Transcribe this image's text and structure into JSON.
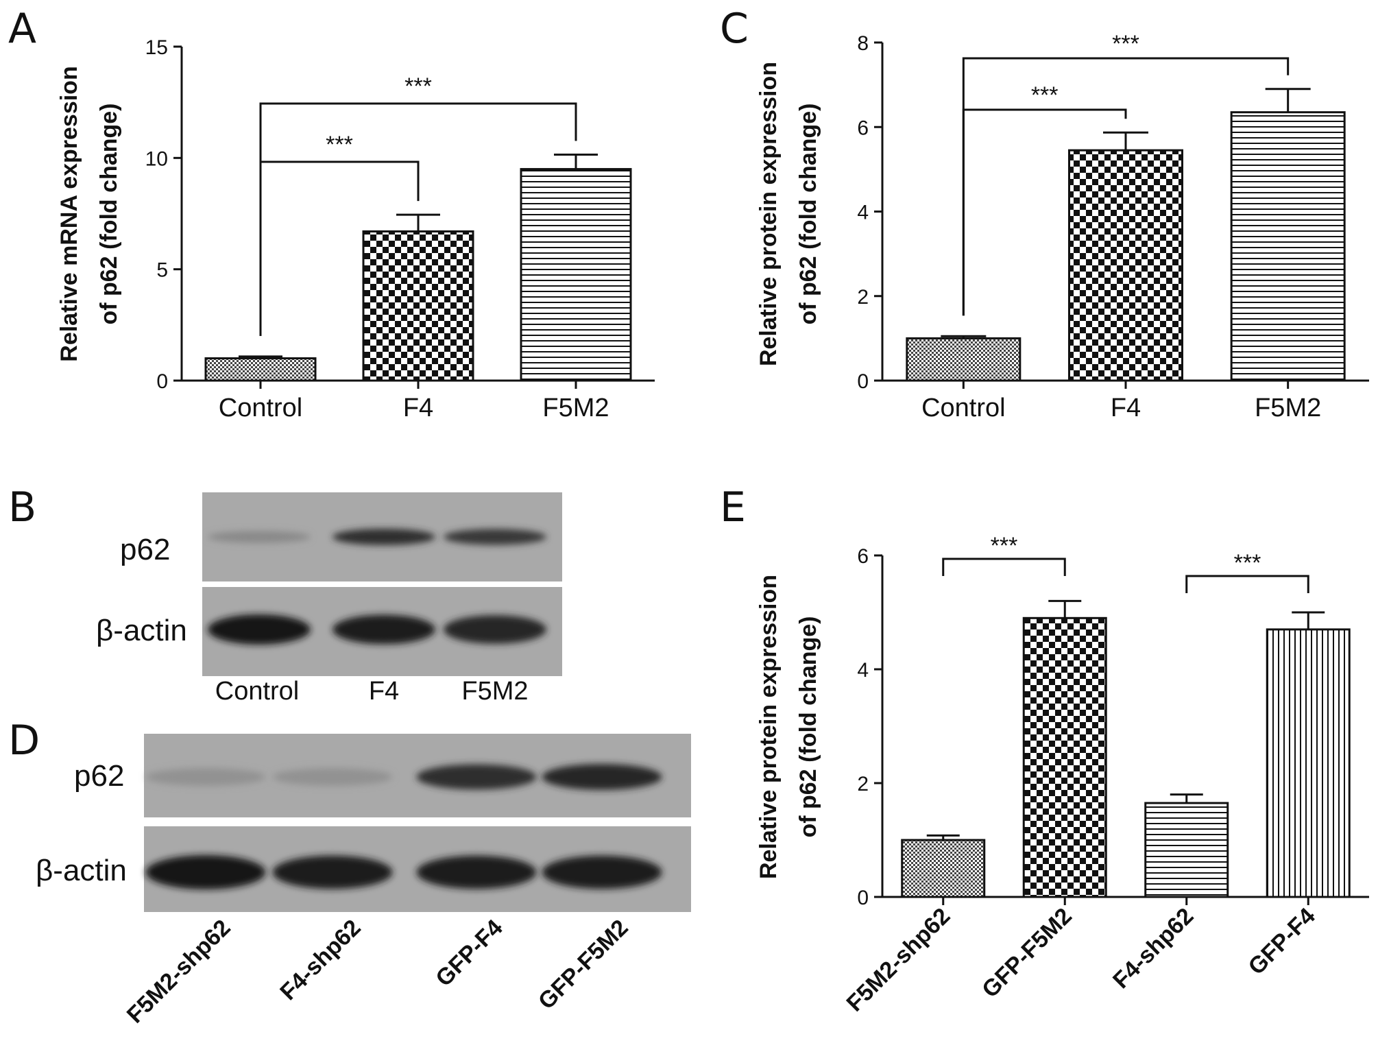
{
  "panel_letters": {
    "a": "A",
    "b": "B",
    "c": "C",
    "d": "D",
    "e": "E"
  },
  "chart_data": [
    {
      "panel": "A",
      "type": "bar",
      "ylabel_line1": "Relative mRNA expression",
      "ylabel_line2": "of p62 (fold change)",
      "ylim": [
        0,
        15
      ],
      "yticks": [
        0,
        5,
        10,
        15
      ],
      "categories": [
        "Control",
        "F4",
        "F5M2"
      ],
      "values": [
        1.0,
        6.7,
        9.5
      ],
      "errors": [
        0.08,
        0.75,
        0.65
      ],
      "patterns": [
        "fine-check",
        "checker",
        "hlines"
      ],
      "significance": [
        {
          "from": 0,
          "to": 1,
          "label": "***"
        },
        {
          "from": 0,
          "to": 2,
          "label": "***"
        }
      ]
    },
    {
      "panel": "C",
      "type": "bar",
      "ylabel_line1": "Relative protein expression",
      "ylabel_line2": "of p62 (fold change)",
      "ylim": [
        0,
        8
      ],
      "yticks": [
        0,
        2,
        4,
        6,
        8
      ],
      "categories": [
        "Control",
        "F4",
        "F5M2"
      ],
      "values": [
        1.0,
        5.45,
        6.35
      ],
      "errors": [
        0.05,
        0.42,
        0.55
      ],
      "patterns": [
        "fine-check",
        "checker",
        "hlines"
      ],
      "significance": [
        {
          "from": 0,
          "to": 1,
          "label": "***"
        },
        {
          "from": 0,
          "to": 2,
          "label": "***"
        }
      ]
    },
    {
      "panel": "E",
      "type": "bar",
      "ylabel_line1": "Relative protein expression",
      "ylabel_line2": "of p62 (fold change)",
      "ylim": [
        0,
        6
      ],
      "yticks": [
        0,
        2,
        4,
        6
      ],
      "categories": [
        "F5M2-shp62",
        "GFP-F5M2",
        "F4-shp62",
        "GFP-F4"
      ],
      "values": [
        1.0,
        4.9,
        1.65,
        4.7
      ],
      "errors": [
        0.08,
        0.3,
        0.15,
        0.3
      ],
      "patterns": [
        "fine-check",
        "checker",
        "hlines",
        "vlines"
      ],
      "significance": [
        {
          "from": 0,
          "to": 1,
          "label": "***"
        },
        {
          "from": 2,
          "to": 3,
          "label": "***"
        }
      ]
    }
  ],
  "blot_B": {
    "rows": [
      "p62",
      "β-actin"
    ],
    "lanes": [
      "Control",
      "F4",
      "F5M2"
    ],
    "band_intensity": {
      "p62": [
        0.35,
        0.85,
        0.8
      ],
      "beta_actin": [
        1.0,
        0.95,
        0.9
      ]
    }
  },
  "blot_D": {
    "rows": [
      "p62",
      "β-actin"
    ],
    "lanes": [
      "F5M2-shp62",
      "F4-shp62",
      "GFP-F4",
      "GFP-F5M2"
    ],
    "band_intensity": {
      "p62": [
        0.3,
        0.3,
        0.85,
        0.9
      ],
      "beta_actin": [
        1.0,
        0.95,
        0.95,
        0.95
      ]
    }
  },
  "colors": {
    "ink": "#111111",
    "blot_bg": "#a9a9a9",
    "band": "#1a1a1a"
  }
}
